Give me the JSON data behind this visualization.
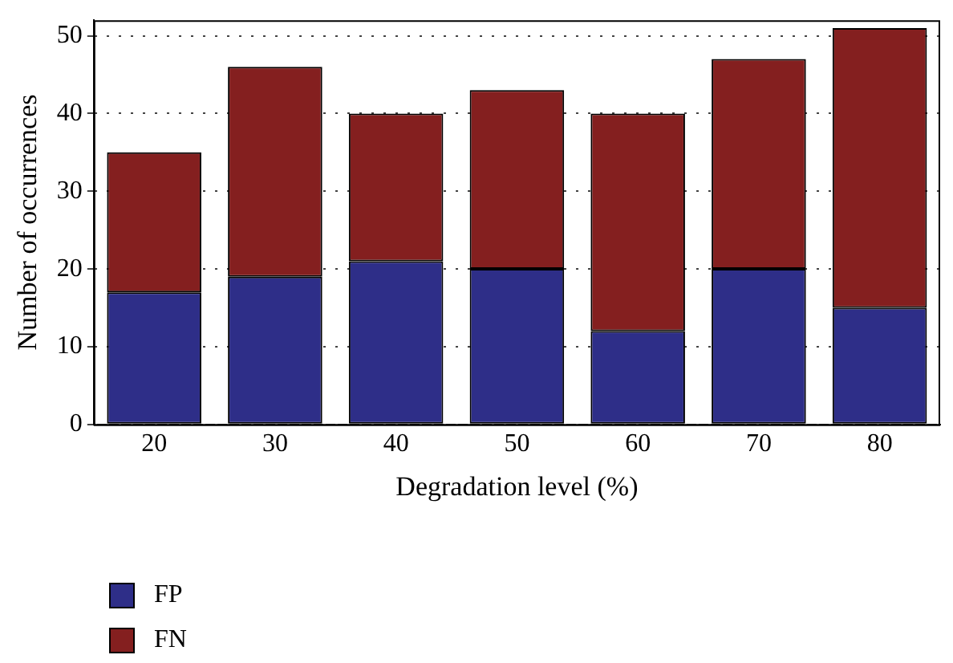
{
  "chart_data": {
    "type": "bar",
    "xlabel": "Degradation level (%)",
    "ylabel": "Number of occurrences",
    "categories": [
      "20",
      "30",
      "40",
      "50",
      "60",
      "70",
      "80"
    ],
    "series": [
      {
        "name": "FP",
        "color": "#2e2e88",
        "values": [
          17,
          19,
          21,
          20,
          12,
          20,
          15
        ]
      },
      {
        "name": "FN",
        "color": "#841f1f",
        "values": [
          18,
          27,
          19,
          23,
          28,
          27,
          36
        ]
      }
    ],
    "stacked": true,
    "ylim": [
      0,
      52
    ],
    "yticks": [
      0,
      10,
      20,
      30,
      40,
      50
    ],
    "grid": "y",
    "legend": "bottom left"
  }
}
